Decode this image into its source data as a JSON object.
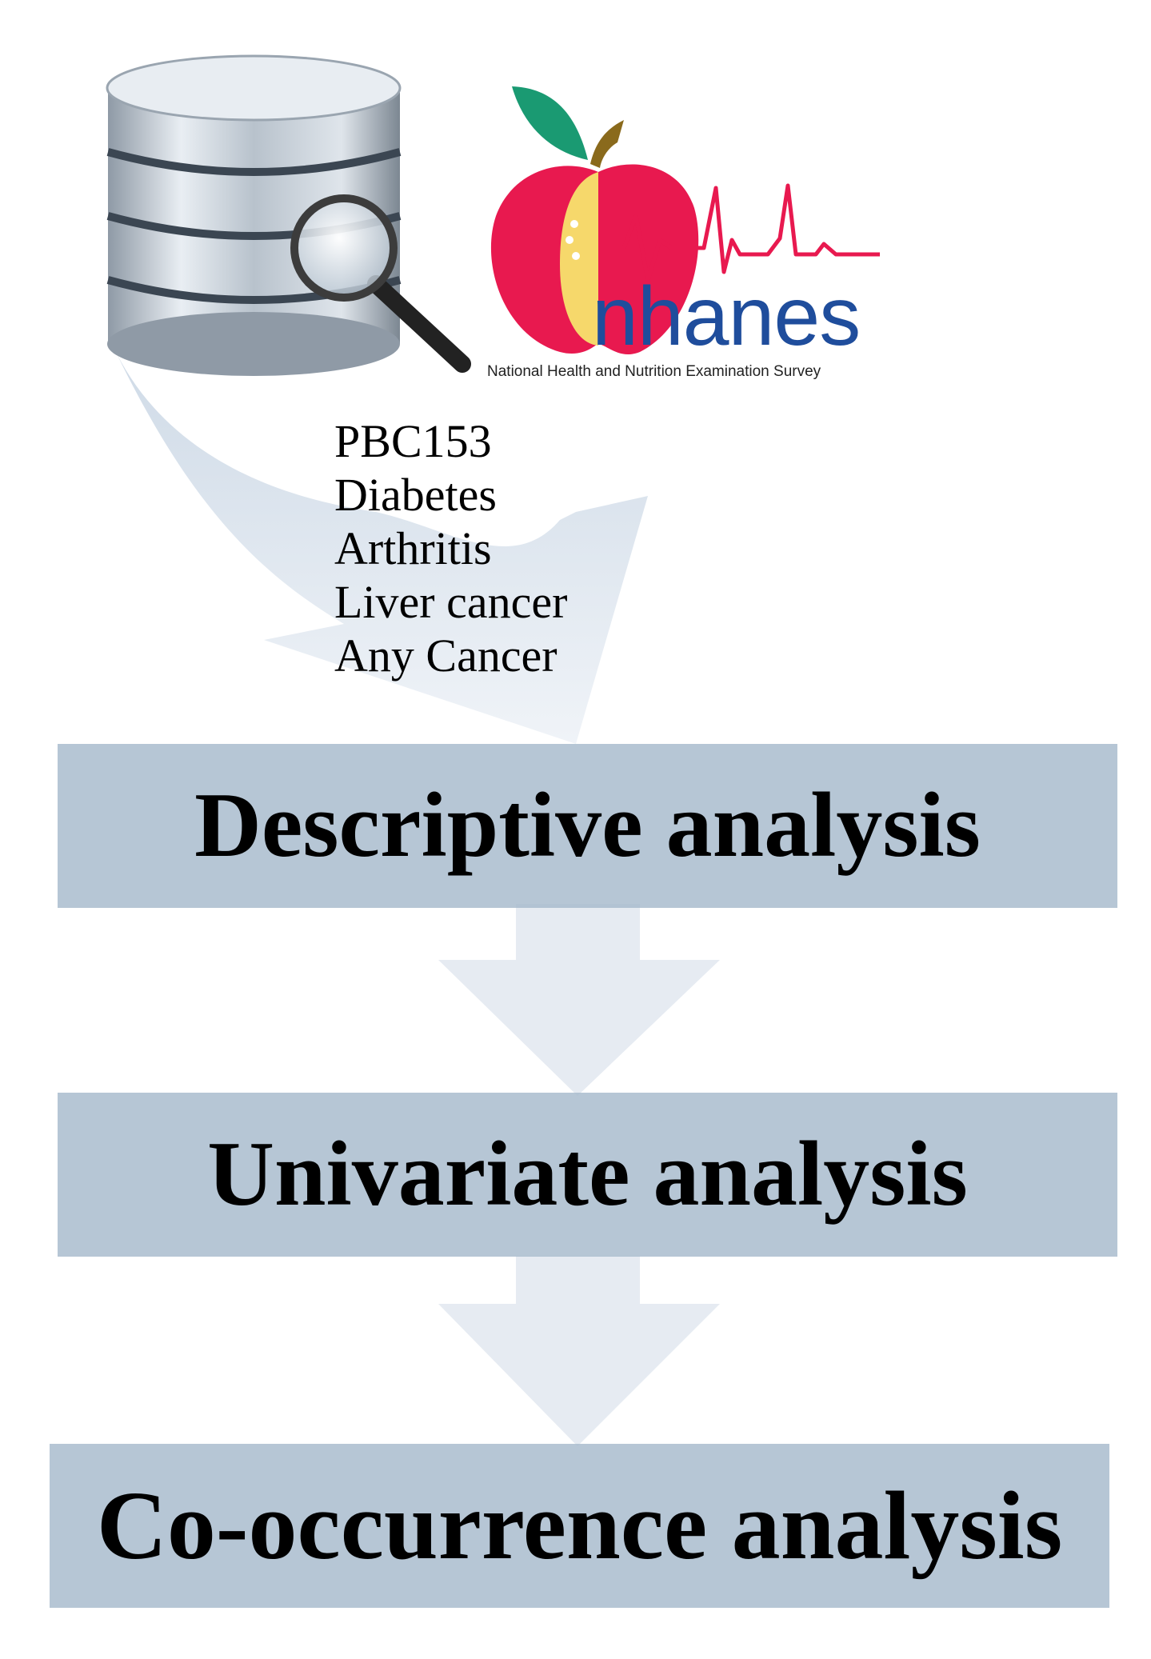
{
  "logo": {
    "wordmark": "nhanes",
    "caption": "National Health and Nutrition Examination Survey"
  },
  "variables": [
    "PBC153",
    "Diabetes",
    "Arthritis",
    "Liver cancer",
    "Any Cancer"
  ],
  "steps": {
    "descriptive": "Descriptive analysis",
    "univariate": "Univariate analysis",
    "cooccurrence": "Co-occurrence analysis"
  },
  "colors": {
    "step_box": "#a6bacc",
    "arrow": "#e6ebf2",
    "apple_red": "#e8194f",
    "apple_yellow": "#f6d86b",
    "leaf_green": "#1a9a72",
    "stem_brown": "#8a6a1c",
    "wordmark_blue": "#1f4d9c"
  }
}
